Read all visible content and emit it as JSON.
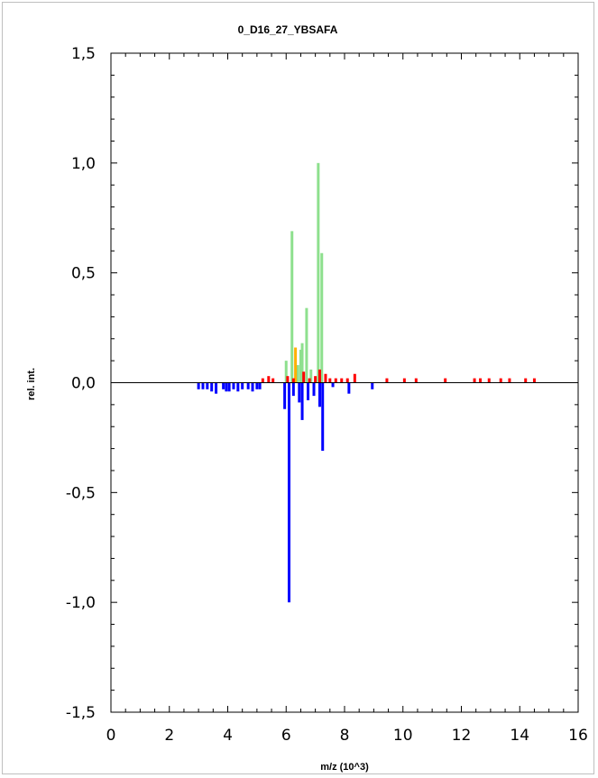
{
  "chart_data": {
    "type": "bar",
    "title": "0_D16_27_YBSAFA",
    "xlabel": "m/z (10^3)",
    "ylabel": "rel. int.",
    "xlim": [
      0,
      16
    ],
    "ylim": [
      -1.5,
      1.5
    ],
    "x_ticks": [
      0,
      2,
      4,
      6,
      8,
      10,
      12,
      14,
      16
    ],
    "x_tick_labels": [
      "0",
      "2",
      "4",
      "6",
      "8",
      "10",
      "12",
      "14",
      "16"
    ],
    "y_ticks": [
      1.5,
      1.0,
      0.5,
      0.0,
      -0.5,
      -1.0,
      -1.5
    ],
    "y_tick_labels": [
      "1,5",
      "1,0",
      "0,5",
      "0,0",
      "-0,5",
      "-1,0",
      "-1,5"
    ],
    "grid": false,
    "colors": {
      "green": "#8ee08e",
      "orange": "#ffb000",
      "red": "#ff0000",
      "blue": "#0000ff",
      "zero_line": "#000000"
    },
    "series": [
      {
        "color_key": "green",
        "x": [
          6.0,
          6.2,
          6.4,
          6.5,
          6.55,
          6.7,
          6.85,
          7.1,
          7.22
        ],
        "values": [
          0.1,
          0.69,
          0.08,
          0.15,
          0.18,
          0.34,
          0.06,
          1.0,
          0.59
        ]
      },
      {
        "color_key": "orange",
        "x": [
          6.32
        ],
        "values": [
          0.16
        ]
      },
      {
        "color_key": "red",
        "x": [
          5.2,
          5.4,
          5.55,
          6.05,
          6.25,
          6.6,
          6.8,
          7.0,
          7.15,
          7.35,
          7.5,
          7.7,
          7.9,
          8.1,
          8.35,
          9.45,
          10.05,
          10.45,
          11.45,
          12.45,
          12.65,
          12.95,
          13.35,
          13.65,
          14.2,
          14.5
        ],
        "values": [
          0.02,
          0.03,
          0.02,
          0.03,
          0.02,
          0.05,
          0.02,
          0.03,
          0.06,
          0.04,
          0.02,
          0.02,
          0.02,
          0.02,
          0.04,
          0.02,
          0.02,
          0.02,
          0.02,
          0.02,
          0.02,
          0.02,
          0.02,
          0.02,
          0.02,
          0.02
        ]
      },
      {
        "color_key": "blue",
        "x": [
          3.0,
          3.15,
          3.3,
          3.45,
          3.6,
          3.85,
          3.95,
          4.05,
          4.2,
          4.35,
          4.5,
          4.7,
          4.85,
          5.0,
          5.1,
          5.95,
          6.1,
          6.25,
          6.45,
          6.55,
          6.75,
          6.95,
          7.15,
          7.25,
          7.6,
          8.15,
          8.95
        ],
        "values": [
          -0.03,
          -0.03,
          -0.03,
          -0.04,
          -0.05,
          -0.03,
          -0.04,
          -0.04,
          -0.03,
          -0.04,
          -0.03,
          -0.03,
          -0.04,
          -0.03,
          -0.03,
          -0.12,
          -1.0,
          -0.06,
          -0.09,
          -0.17,
          -0.08,
          -0.06,
          -0.11,
          -0.31,
          -0.02,
          -0.05,
          -0.03
        ]
      }
    ]
  }
}
